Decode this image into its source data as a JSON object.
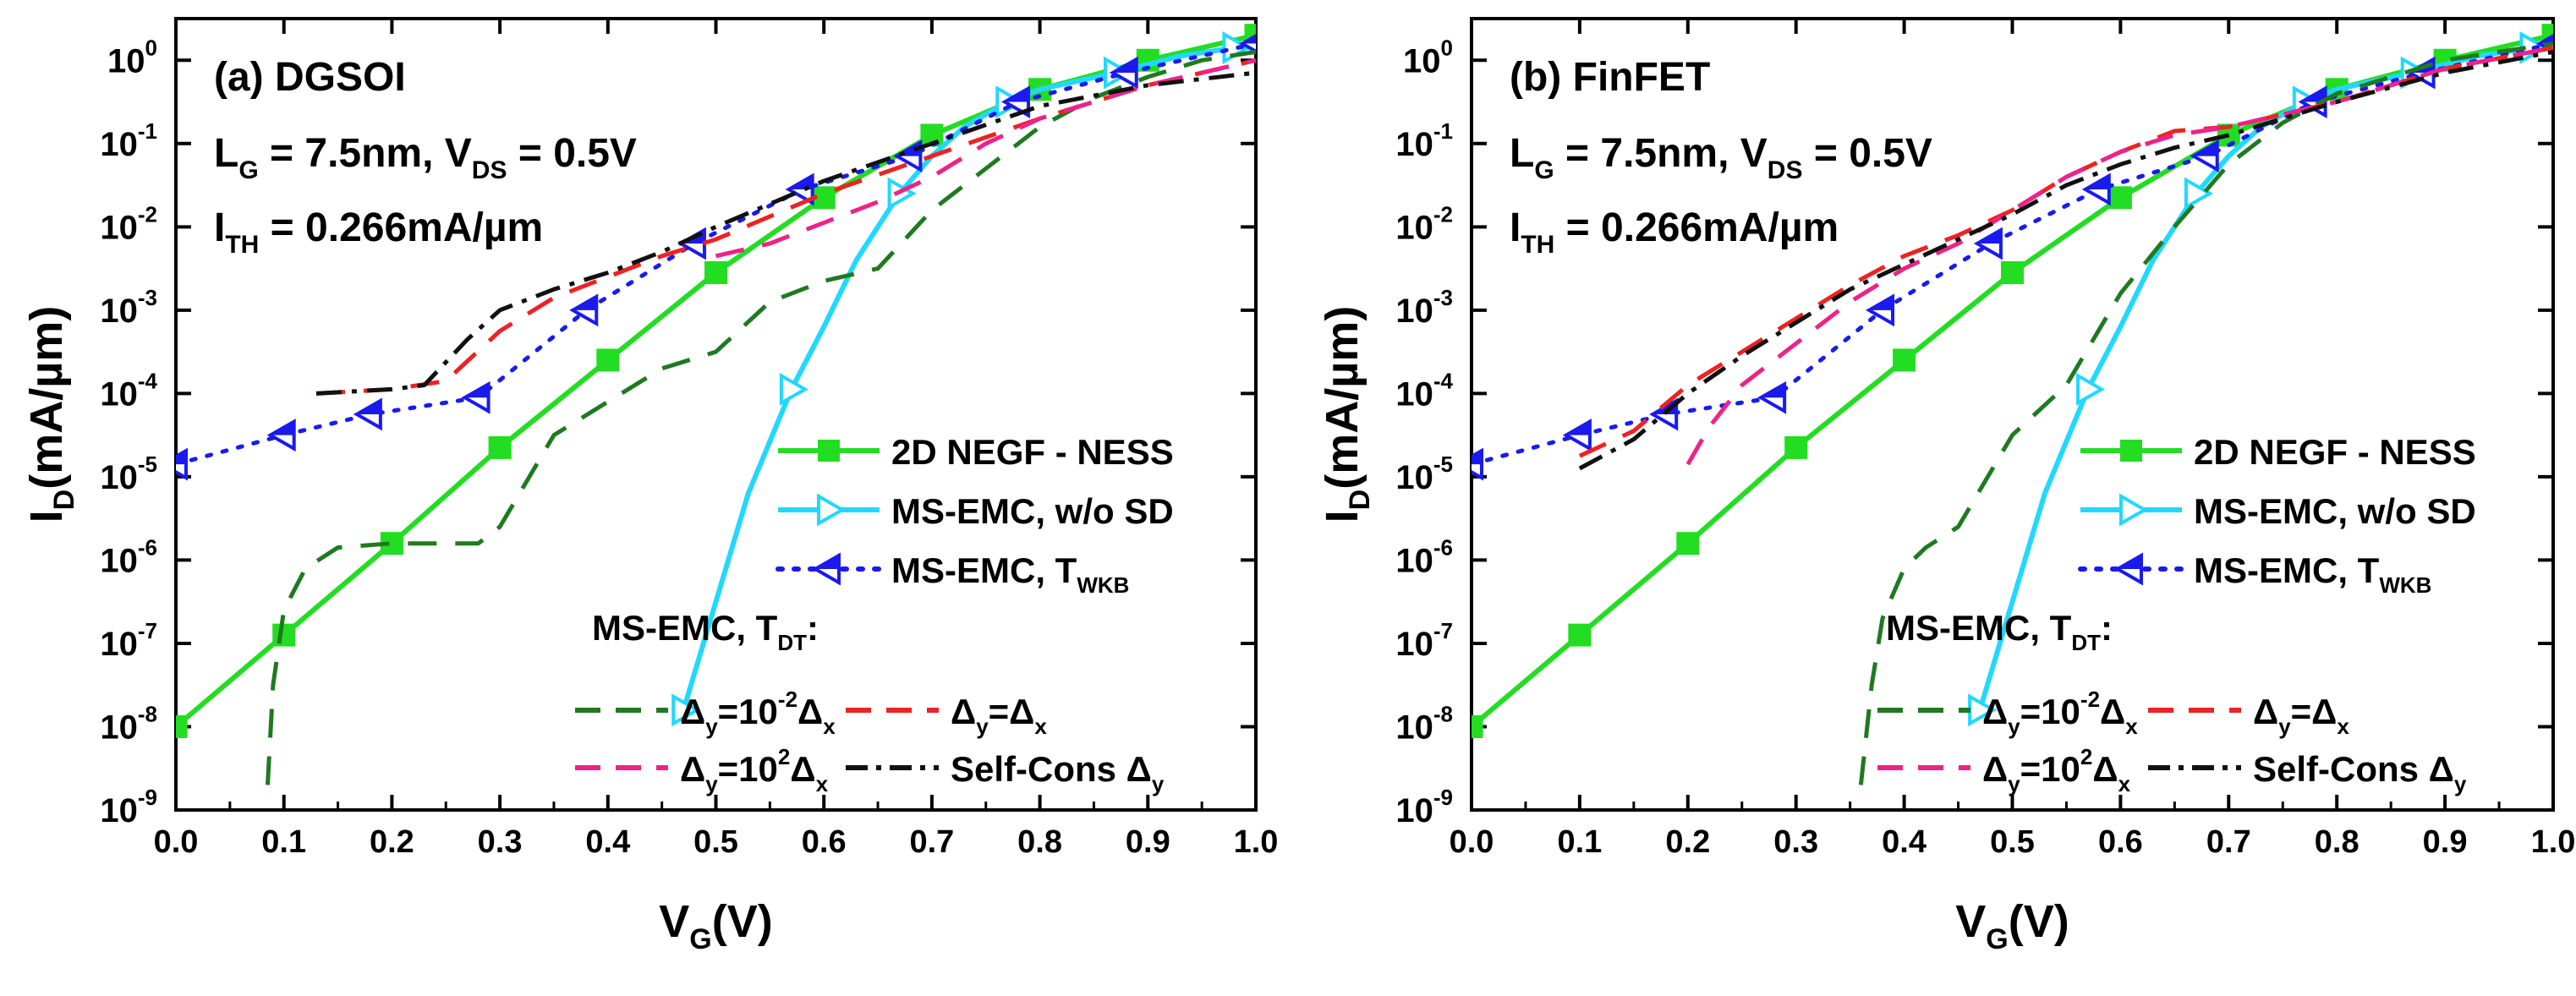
{
  "chart_data": [
    {
      "type": "line",
      "title": "(a) DGSOI",
      "xlabel": "V",
      "xlabel_sub": "G",
      "xlabel_tail": "(V)",
      "ylabel": "I",
      "ylabel_sub": "D",
      "ylabel_tail": "(mA/µm)",
      "xlim": [
        0,
        1.0
      ],
      "ylim_log10": [
        -9,
        0.5
      ],
      "xticks": [
        "0.0",
        "0.1",
        "0.2",
        "0.3",
        "0.4",
        "0.5",
        "0.6",
        "0.7",
        "0.8",
        "0.9",
        "1.0"
      ],
      "yticks": [
        -9,
        -8,
        -7,
        -6,
        -5,
        -4,
        -3,
        -2,
        -1,
        0
      ],
      "annotations": [
        {
          "main": "L",
          "sub": "G",
          "rest": " = 7.5nm, V",
          "sub2": "DS",
          "rest2": " = 0.5V"
        },
        {
          "main": "I",
          "sub": "TH",
          "rest": " = 0.266mA/µm",
          "sub2": "",
          "rest2": ""
        }
      ],
      "legend_title": {
        "main": "MS-EMC, T",
        "sub": "DT",
        "rest": ":"
      },
      "series": [
        {
          "key": "negf",
          "name": "2D NEGF - NESS",
          "color": "#22dd22",
          "style": "solid",
          "marker": "square",
          "x": [
            0.0,
            0.1,
            0.2,
            0.3,
            0.4,
            0.5,
            0.6,
            0.7,
            0.8,
            0.9,
            1.0
          ],
          "logy": [
            -8.0,
            -6.9,
            -5.8,
            -4.65,
            -3.6,
            -2.55,
            -1.65,
            -0.9,
            -0.35,
            0.0,
            0.3
          ]
        },
        {
          "key": "emc",
          "name": "MS-EMC, w/o SD",
          "color": "#22d8ff",
          "style": "solid",
          "marker": "tri-right",
          "x": [
            0.47,
            0.5,
            0.53,
            0.57,
            0.6,
            0.63,
            0.67,
            0.7,
            0.73,
            0.77,
            0.8,
            0.87,
            0.93,
            0.98,
            1.0
          ],
          "logy": [
            -7.8,
            -6.5,
            -5.2,
            -3.95,
            -3.2,
            -2.4,
            -1.6,
            -1.15,
            -0.8,
            -0.5,
            -0.35,
            -0.15,
            0.05,
            0.15,
            0.15
          ]
        },
        {
          "key": "wkb",
          "name": "MS-EMC, T",
          "name_sub": "WKB",
          "color": "#1a1aee",
          "style": "dotted",
          "marker": "tri-left",
          "x": [
            0.0,
            0.1,
            0.18,
            0.28,
            0.38,
            0.48,
            0.58,
            0.68,
            0.78,
            0.88,
            1.0
          ],
          "logy": [
            -4.85,
            -4.5,
            -4.25,
            -4.05,
            -3.0,
            -2.2,
            -1.55,
            -1.15,
            -0.5,
            -0.15,
            0.2
          ]
        },
        {
          "key": "d1",
          "name": "Δy=10⁻²Δx",
          "color": "#1f7a1f",
          "style": "dash",
          "x": [
            0.085,
            0.09,
            0.1,
            0.12,
            0.15,
            0.2,
            0.28,
            0.3,
            0.35,
            0.4,
            0.45,
            0.5,
            0.55,
            0.6,
            0.65,
            0.7,
            0.75,
            0.8,
            0.85,
            0.9,
            0.95,
            1.0
          ],
          "logy": [
            -8.7,
            -7.5,
            -6.6,
            -6.1,
            -5.85,
            -5.8,
            -5.8,
            -5.6,
            -4.5,
            -4.1,
            -3.7,
            -3.5,
            -2.9,
            -2.65,
            -2.5,
            -1.8,
            -1.3,
            -0.8,
            -0.45,
            -0.2,
            0.0,
            0.1
          ]
        },
        {
          "key": "d2",
          "name": "Δy=Δx",
          "color": "#ee2222",
          "style": "dash",
          "x": [
            0.13,
            0.2,
            0.25,
            0.3,
            0.35,
            0.4,
            0.45,
            0.5,
            0.6,
            0.7,
            0.8,
            0.9,
            1.0
          ],
          "logy": [
            -4.0,
            -3.95,
            -3.85,
            -3.25,
            -2.85,
            -2.6,
            -2.35,
            -2.15,
            -1.6,
            -1.15,
            -0.7,
            -0.3,
            0.0
          ]
        },
        {
          "key": "d3",
          "name": "Δy=10²Δx",
          "color": "#ee2288",
          "style": "dash",
          "x": [
            0.5,
            0.55,
            0.6,
            0.65,
            0.7,
            0.75,
            0.8,
            0.9,
            1.0
          ],
          "logy": [
            -2.35,
            -2.2,
            -1.95,
            -1.7,
            -1.4,
            -1.0,
            -0.7,
            -0.3,
            0.0
          ]
        },
        {
          "key": "sc",
          "name": "Self-Cons Δ",
          "name_sub": "y",
          "color": "#111111",
          "style": "dashdot",
          "x": [
            0.13,
            0.2,
            0.23,
            0.27,
            0.3,
            0.35,
            0.4,
            0.45,
            0.5,
            0.6,
            0.7,
            0.8,
            0.9,
            1.0
          ],
          "logy": [
            -4.0,
            -3.95,
            -3.9,
            -3.35,
            -3.0,
            -2.75,
            -2.55,
            -2.3,
            -2.0,
            -1.45,
            -1.0,
            -0.55,
            -0.3,
            -0.15
          ]
        }
      ]
    },
    {
      "type": "line",
      "title": "(b) FinFET",
      "xlabel": "V",
      "xlabel_sub": "G",
      "xlabel_tail": "(V)",
      "ylabel": "I",
      "ylabel_sub": "D",
      "ylabel_tail": "(mA/µm)",
      "xlim": [
        0,
        1.0
      ],
      "ylim_log10": [
        -9,
        0.5
      ],
      "xticks": [
        "0.0",
        "0.1",
        "0.2",
        "0.3",
        "0.4",
        "0.5",
        "0.6",
        "0.7",
        "0.8",
        "0.9",
        "1.0"
      ],
      "yticks": [
        -9,
        -8,
        -7,
        -6,
        -5,
        -4,
        -3,
        -2,
        -1,
        0
      ],
      "annotations": [
        {
          "main": "L",
          "sub": "G",
          "rest": " = 7.5nm, V",
          "sub2": "DS",
          "rest2": " = 0.5V"
        },
        {
          "main": "I",
          "sub": "TH",
          "rest": " = 0.266mA/µm",
          "sub2": "",
          "rest2": ""
        }
      ],
      "legend_title": {
        "main": "MS-EMC, T",
        "sub": "DT",
        "rest": ":"
      },
      "series": [
        {
          "key": "negf",
          "name": "2D NEGF - NESS",
          "color": "#22dd22",
          "style": "solid",
          "marker": "square",
          "x": [
            0.0,
            0.1,
            0.2,
            0.3,
            0.4,
            0.5,
            0.6,
            0.7,
            0.8,
            0.9,
            1.0
          ],
          "logy": [
            -8.0,
            -6.9,
            -5.8,
            -4.65,
            -3.6,
            -2.55,
            -1.65,
            -0.9,
            -0.35,
            0.0,
            0.3
          ]
        },
        {
          "key": "emc",
          "name": "MS-EMC, w/o SD",
          "color": "#22d8ff",
          "style": "solid",
          "marker": "tri-right",
          "x": [
            0.47,
            0.5,
            0.53,
            0.57,
            0.6,
            0.63,
            0.67,
            0.7,
            0.73,
            0.77,
            0.8,
            0.87,
            0.93,
            0.98,
            1.0
          ],
          "logy": [
            -7.8,
            -6.5,
            -5.2,
            -3.95,
            -3.2,
            -2.4,
            -1.6,
            -1.15,
            -0.8,
            -0.5,
            -0.35,
            -0.15,
            0.05,
            0.15,
            0.15
          ]
        },
        {
          "key": "wkb",
          "name": "MS-EMC, T",
          "name_sub": "WKB",
          "color": "#1a1aee",
          "style": "dotted",
          "marker": "tri-left",
          "x": [
            0.0,
            0.1,
            0.18,
            0.28,
            0.38,
            0.48,
            0.58,
            0.68,
            0.78,
            0.88,
            1.0
          ],
          "logy": [
            -4.85,
            -4.5,
            -4.25,
            -4.05,
            -3.0,
            -2.2,
            -1.55,
            -1.15,
            -0.5,
            -0.15,
            0.2
          ]
        },
        {
          "key": "d1",
          "name": "Δy=10⁻²Δx",
          "color": "#1f7a1f",
          "style": "dash",
          "x": [
            0.36,
            0.37,
            0.38,
            0.4,
            0.42,
            0.45,
            0.5,
            0.55,
            0.6,
            0.65,
            0.7,
            0.75,
            0.8,
            0.85,
            0.9,
            0.95,
            1.0
          ],
          "logy": [
            -8.7,
            -7.5,
            -6.7,
            -6.1,
            -5.85,
            -5.6,
            -4.5,
            -3.9,
            -2.8,
            -2.0,
            -1.25,
            -0.75,
            -0.4,
            -0.2,
            0.0,
            0.1,
            0.2
          ]
        },
        {
          "key": "d2",
          "name": "Δy=Δx",
          "color": "#ee2222",
          "style": "dash",
          "x": [
            0.1,
            0.15,
            0.2,
            0.25,
            0.3,
            0.35,
            0.4,
            0.45,
            0.5,
            0.55,
            0.6,
            0.65,
            0.7,
            0.8,
            0.9,
            1.0
          ],
          "logy": [
            -4.75,
            -4.45,
            -3.9,
            -3.5,
            -3.1,
            -2.7,
            -2.35,
            -2.1,
            -1.8,
            -1.4,
            -1.1,
            -0.85,
            -0.8,
            -0.5,
            -0.1,
            0.15
          ]
        },
        {
          "key": "d3",
          "name": "Δy=10²Δx",
          "color": "#ee2288",
          "style": "dash",
          "x": [
            0.2,
            0.22,
            0.25,
            0.3,
            0.35,
            0.4,
            0.45,
            0.5,
            0.55,
            0.6,
            0.65,
            0.7,
            0.8,
            0.9,
            1.0
          ],
          "logy": [
            -4.85,
            -4.4,
            -3.9,
            -3.4,
            -2.9,
            -2.5,
            -2.2,
            -1.8,
            -1.4,
            -1.1,
            -0.9,
            -0.8,
            -0.5,
            -0.1,
            0.15
          ]
        },
        {
          "key": "sc",
          "name": "Self-Cons Δ",
          "name_sub": "y",
          "color": "#111111",
          "style": "dashdot",
          "x": [
            0.1,
            0.15,
            0.2,
            0.25,
            0.3,
            0.35,
            0.4,
            0.45,
            0.5,
            0.55,
            0.6,
            0.65,
            0.7,
            0.8,
            0.9,
            1.0
          ],
          "logy": [
            -4.9,
            -4.55,
            -4.0,
            -3.55,
            -3.15,
            -2.75,
            -2.45,
            -2.15,
            -1.85,
            -1.5,
            -1.25,
            -1.05,
            -0.9,
            -0.5,
            -0.15,
            0.1
          ]
        }
      ]
    }
  ]
}
